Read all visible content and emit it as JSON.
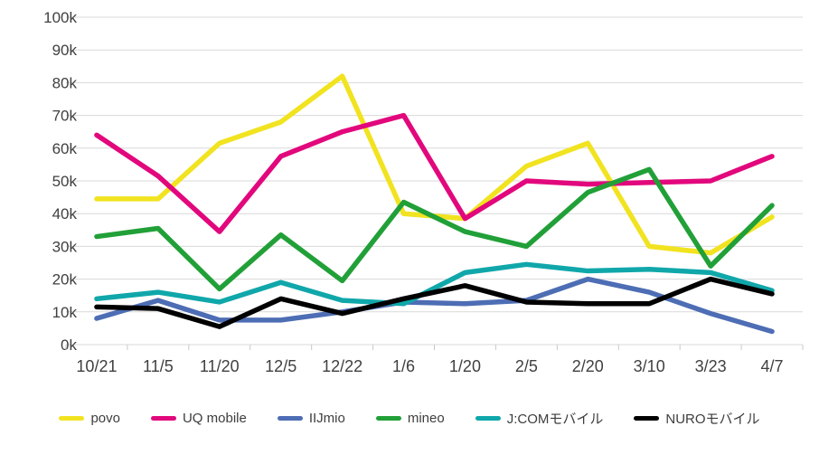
{
  "chart_data": {
    "type": "line",
    "title": "",
    "unit": "thousands (k)",
    "categories": [
      "10/21",
      "11/5",
      "11/20",
      "12/5",
      "12/22",
      "1/6",
      "1/20",
      "2/5",
      "2/20",
      "3/10",
      "3/23",
      "4/7"
    ],
    "series": [
      {
        "name": "povo",
        "color": "#f1e320",
        "values": [
          44.5,
          44.5,
          61.5,
          68,
          82,
          40,
          38.5,
          54.5,
          61.5,
          30,
          28,
          39
        ]
      },
      {
        "name": "UQ mobile",
        "color": "#e2077c",
        "values": [
          64,
          51.5,
          34.5,
          57.5,
          65,
          70,
          38.5,
          50,
          49,
          49.5,
          50,
          57.5
        ]
      },
      {
        "name": "IIJmio",
        "color": "#4d6db4",
        "values": [
          8,
          13.5,
          7.5,
          7.5,
          10,
          13,
          12.5,
          13.5,
          20,
          16,
          9.5,
          4
        ]
      },
      {
        "name": "mineo",
        "color": "#21a038",
        "values": [
          33,
          35.5,
          17,
          33.5,
          19.5,
          43.5,
          34.5,
          30,
          46.5,
          53.5,
          24,
          42.5
        ]
      },
      {
        "name": "J:COMモバイル",
        "color": "#10a7aa",
        "values": [
          14,
          16,
          13,
          19,
          13.5,
          12.5,
          22,
          24.5,
          22.5,
          23,
          22,
          16.5
        ]
      },
      {
        "name": "NUROモバイル",
        "color": "#000000",
        "values": [
          11.5,
          11,
          5.5,
          14,
          9.5,
          14,
          18,
          13,
          12.5,
          12.5,
          20,
          15.5
        ]
      }
    ],
    "y_axis": {
      "min": 0,
      "max": 100,
      "step": 10,
      "tick_labels": [
        "0k",
        "10k",
        "20k",
        "30k",
        "40k",
        "50k",
        "60k",
        "70k",
        "80k",
        "90k",
        "100k"
      ]
    },
    "grid": true,
    "legend_position": "bottom",
    "colors": {
      "gridline": "#d9d9d9",
      "tick_mark": "#c9c9c9",
      "axis_label": "#404040",
      "background": "#ffffff"
    }
  }
}
